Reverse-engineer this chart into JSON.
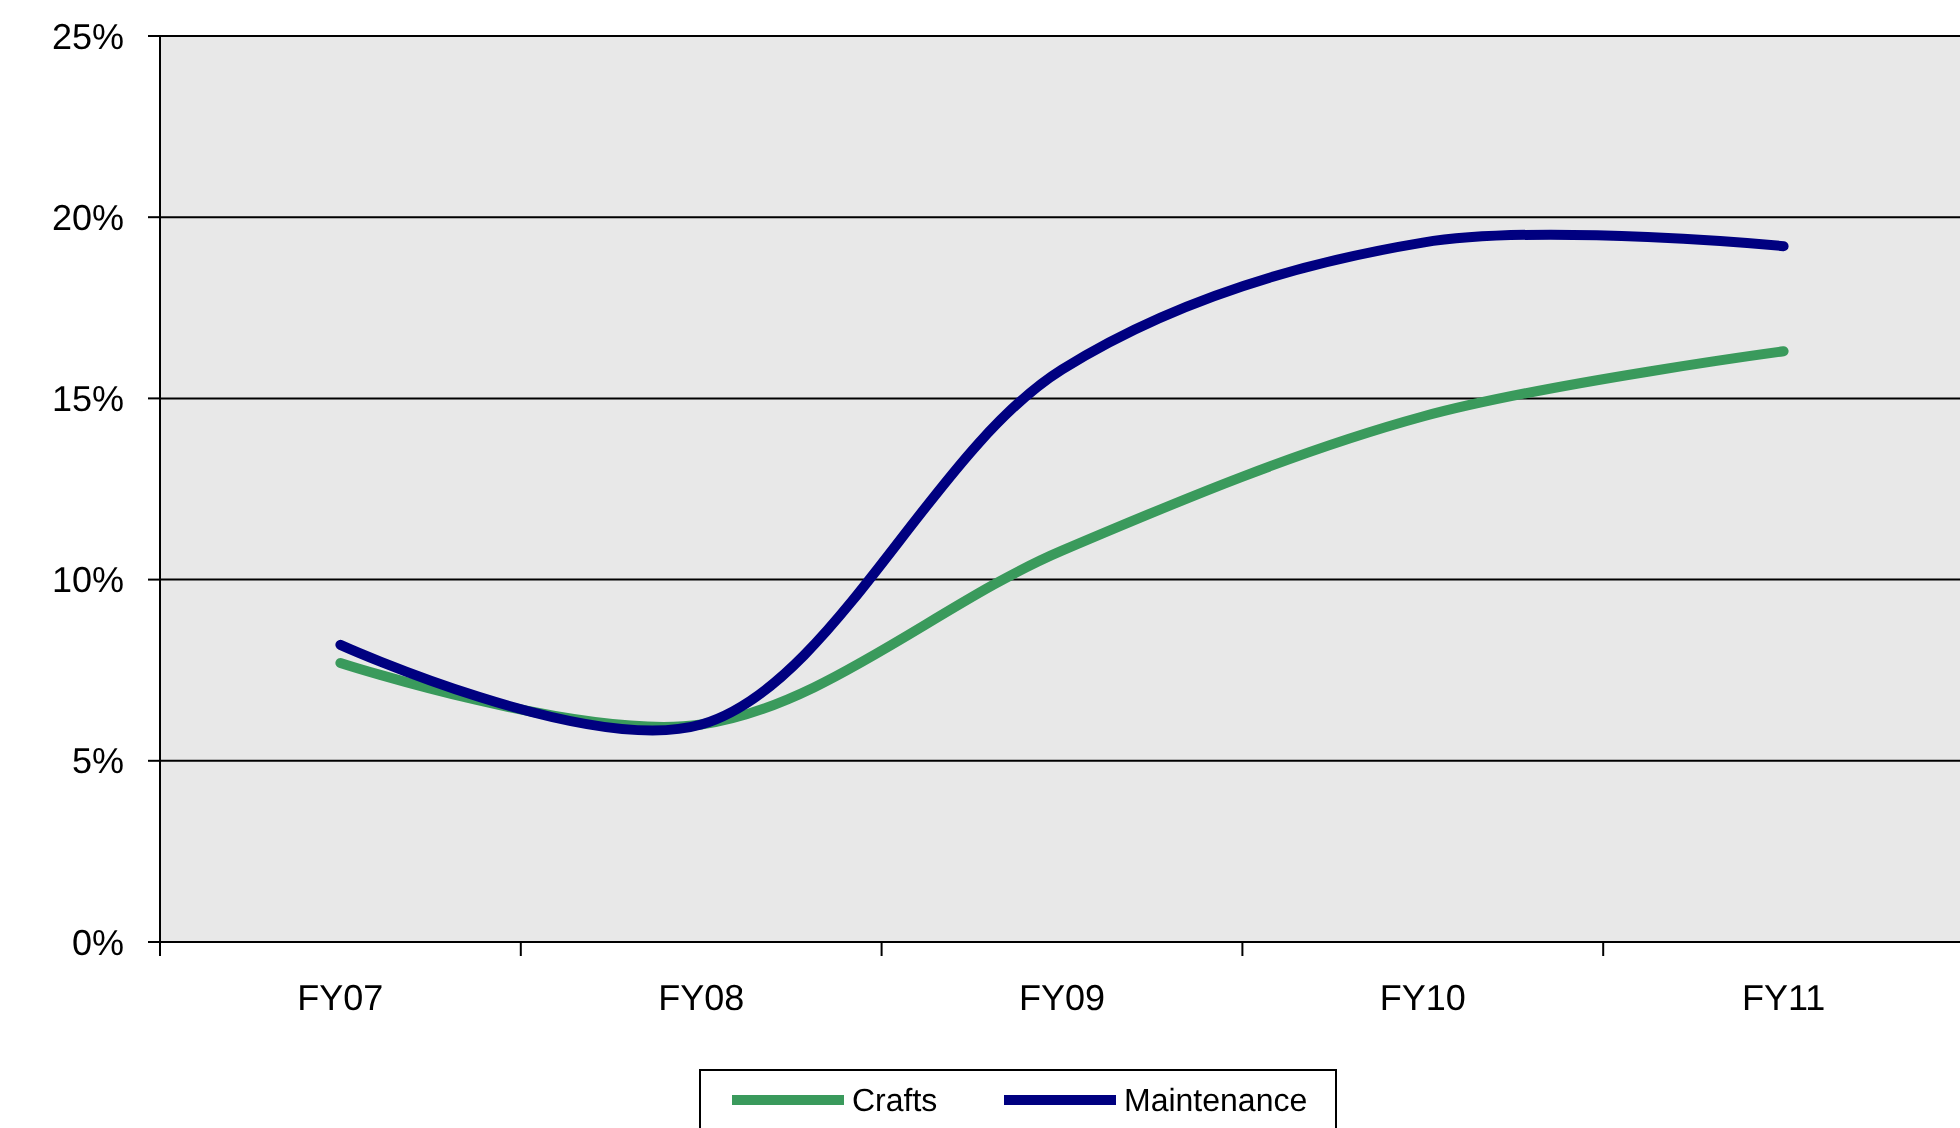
{
  "chart_data": {
    "type": "line",
    "categories": [
      "FY07",
      "FY08",
      "FY09",
      "FY10",
      "FY11"
    ],
    "series": [
      {
        "name": "Crafts",
        "color": "#3a9a5c",
        "values": [
          7.7,
          6.0,
          10.8,
          14.5,
          16.3
        ]
      },
      {
        "name": "Maintenance",
        "color": "#000080",
        "values": [
          8.2,
          6.0,
          15.8,
          19.3,
          19.2
        ]
      }
    ],
    "ylim": [
      0,
      25
    ],
    "yticks": [
      {
        "value": 0,
        "label": "0%"
      },
      {
        "value": 5,
        "label": "5%"
      },
      {
        "value": 10,
        "label": "10%"
      },
      {
        "value": 15,
        "label": "15%"
      },
      {
        "value": 20,
        "label": "20%"
      },
      {
        "value": 25,
        "label": "25%"
      }
    ],
    "grid": "y",
    "legend": "bottom",
    "marker": "none",
    "line_style": "solid"
  }
}
